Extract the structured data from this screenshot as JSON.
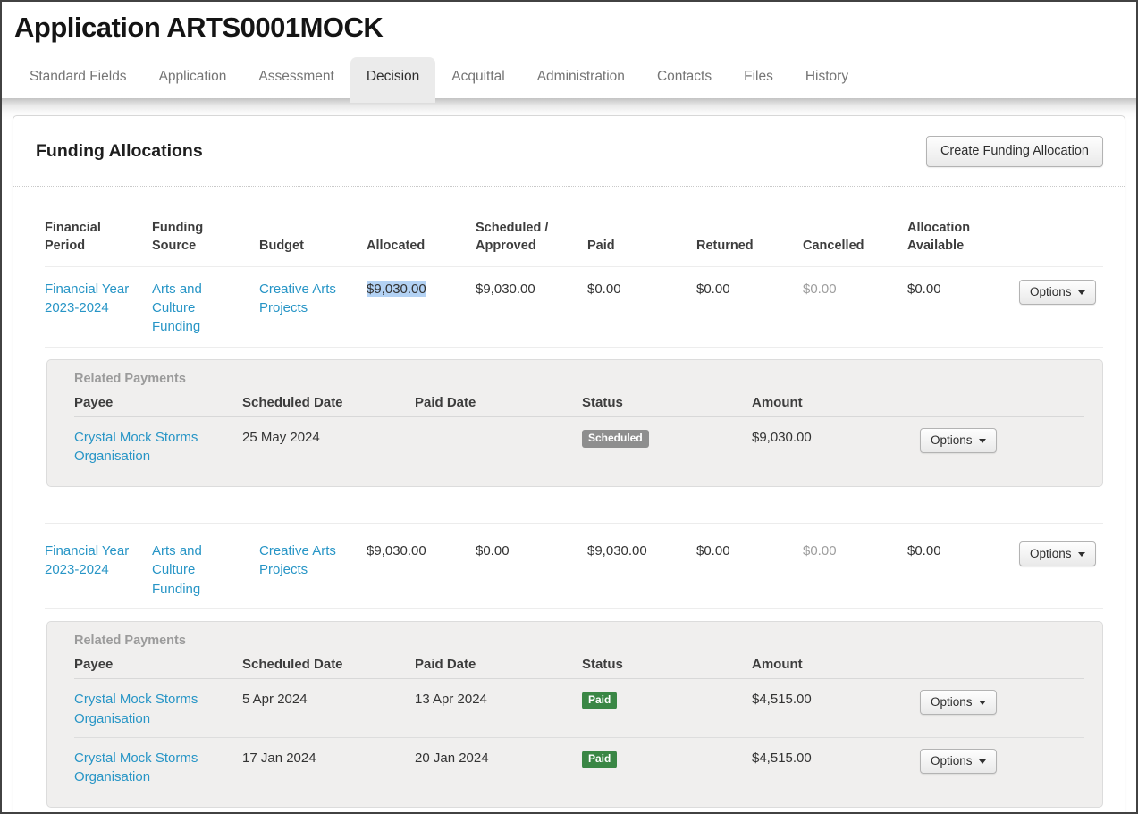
{
  "page_title": "Application ARTS0001MOCK",
  "tabs": [
    {
      "label": "Standard Fields",
      "active": false
    },
    {
      "label": "Application",
      "active": false
    },
    {
      "label": "Assessment",
      "active": false
    },
    {
      "label": "Decision",
      "active": true
    },
    {
      "label": "Acquittal",
      "active": false
    },
    {
      "label": "Administration",
      "active": false
    },
    {
      "label": "Contacts",
      "active": false
    },
    {
      "label": "Files",
      "active": false
    },
    {
      "label": "History",
      "active": false
    }
  ],
  "funding_section": {
    "title": "Funding Allocations",
    "create_button_label": "Create Funding Allocation",
    "options_button_label": "Options"
  },
  "allocations": {
    "columns": {
      "financial_period": "Financial Period",
      "funding_source": "Funding Source",
      "budget": "Budget",
      "allocated": "Allocated",
      "scheduled_approved": "Scheduled / Approved",
      "paid": "Paid",
      "returned": "Returned",
      "cancelled": "Cancelled",
      "allocation_available": "Allocation Available"
    },
    "rows": [
      {
        "financial_period": "Financial Year 2023-2024",
        "funding_source": "Arts and Culture Funding",
        "budget": "Creative Arts Projects",
        "allocated": "$9,030.00",
        "allocated_text_selected": true,
        "scheduled_approved": "$9,030.00",
        "paid": "$0.00",
        "returned": "$0.00",
        "cancelled": "$0.00",
        "allocation_available": "$0.00"
      },
      {
        "financial_period": "Financial Year 2023-2024",
        "funding_source": "Arts and Culture Funding",
        "budget": "Creative Arts Projects",
        "allocated": "$9,030.00",
        "allocated_text_selected": false,
        "scheduled_approved": "$0.00",
        "paid": "$9,030.00",
        "returned": "$0.00",
        "cancelled": "$0.00",
        "allocation_available": "$0.00"
      }
    ]
  },
  "related_payments": {
    "title": "Related Payments",
    "columns": {
      "payee": "Payee",
      "scheduled_date": "Scheduled Date",
      "paid_date": "Paid Date",
      "status": "Status",
      "amount": "Amount"
    },
    "groups": [
      {
        "rows": [
          {
            "payee": "Crystal Mock Storms Organisation",
            "scheduled_date": "25 May 2024",
            "paid_date": "",
            "status": "Scheduled",
            "amount": "$9,030.00"
          }
        ]
      },
      {
        "rows": [
          {
            "payee": "Crystal Mock Storms Organisation",
            "scheduled_date": "5 Apr 2024",
            "paid_date": "13 Apr 2024",
            "status": "Paid",
            "amount": "$4,515.00"
          },
          {
            "payee": "Crystal Mock Storms Organisation",
            "scheduled_date": "17 Jan 2024",
            "paid_date": "20 Jan 2024",
            "status": "Paid",
            "amount": "$4,515.00"
          }
        ]
      }
    ]
  },
  "colors": {
    "link": "#2795c6",
    "selection_highlight": "#b3d2f4",
    "badge_scheduled": "#8e8e8e",
    "badge_paid": "#3a8745"
  }
}
